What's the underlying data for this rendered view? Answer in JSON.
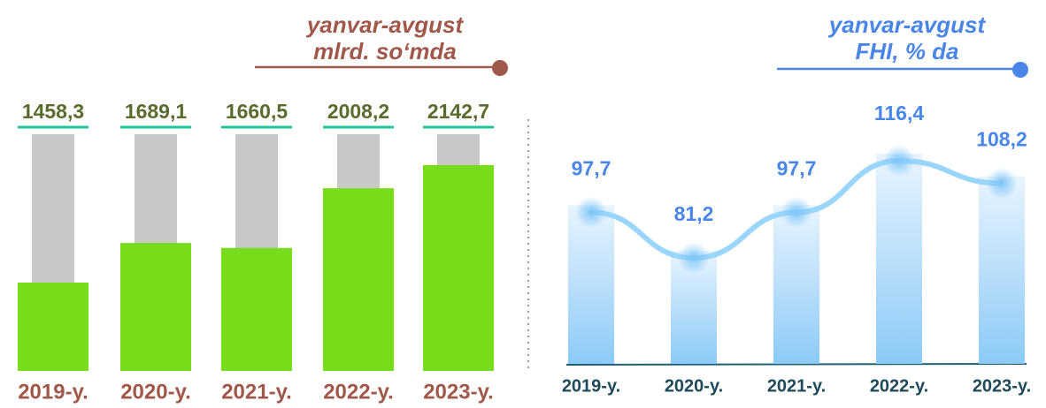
{
  "chart_data": [
    {
      "type": "bar",
      "title": "yanvar-avgust",
      "subtitle": "mlrd. so‘mda",
      "categories": [
        "2019-y.",
        "2020-y.",
        "2021-y.",
        "2022-y.",
        "2023-y."
      ],
      "values": [
        1458.3,
        1689.1,
        1660.5,
        2008.2,
        2142.7
      ],
      "value_labels": [
        "1458,3",
        "1689,1",
        "1660,5",
        "2008,2",
        "2142,7"
      ],
      "color": "#77dd1a"
    },
    {
      "type": "line",
      "title": "yanvar-avgust",
      "subtitle": "FHI, % da",
      "categories": [
        "2019-y.",
        "2020-y.",
        "2021-y.",
        "2022-y.",
        "2023-y."
      ],
      "values": [
        97.7,
        81.2,
        97.7,
        116.4,
        108.2
      ],
      "value_labels": [
        "97,7",
        "81,2",
        "97,7",
        "116,4",
        "108,2"
      ],
      "color": "#4a86e8"
    }
  ]
}
